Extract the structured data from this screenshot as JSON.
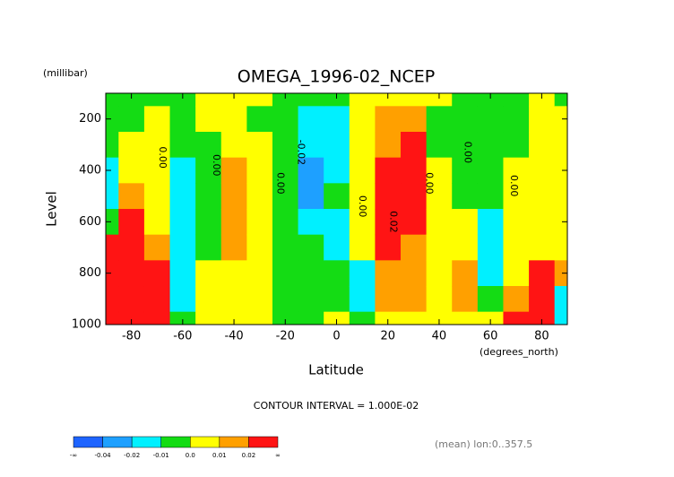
{
  "chart_data": {
    "type": "contour",
    "title": "OMEGA_1996-02_NCEP",
    "y_unit": "(millibar)",
    "y_label": "Level",
    "x_label": "Latitude",
    "x_unit": "(degrees_north)",
    "subtitle": "CONTOUR INTERVAL = 1.000E-02",
    "footnote": "(mean) lon:0..357.5",
    "x": [
      -90,
      -80,
      -70,
      -60,
      -50,
      -40,
      -30,
      -20,
      -10,
      0,
      10,
      20,
      30,
      40,
      50,
      60,
      70,
      80,
      90
    ],
    "y": [
      100,
      200,
      300,
      400,
      500,
      600,
      700,
      800,
      900,
      1000
    ],
    "z": [
      [
        -0.005,
        -0.005,
        -0.005,
        -0.015,
        -0.015,
        -0.005,
        0.03,
        0.04,
        0.05,
        0.05
      ],
      [
        -0.005,
        -0.005,
        0.005,
        0.005,
        0.015,
        0.03,
        0.04,
        0.05,
        0.05,
        0.05
      ],
      [
        -0.005,
        0.005,
        0.005,
        0.005,
        0.005,
        0.005,
        0.015,
        0.03,
        0.03,
        0.03
      ],
      [
        -0.005,
        -0.005,
        -0.005,
        -0.015,
        -0.015,
        -0.015,
        -0.015,
        -0.015,
        -0.015,
        -0.005
      ],
      [
        0.005,
        0.005,
        -0.005,
        -0.005,
        -0.005,
        -0.005,
        -0.005,
        0.005,
        0.005,
        0.005
      ],
      [
        0.005,
        0.005,
        0.005,
        0.015,
        0.015,
        0.015,
        0.015,
        0.005,
        0.005,
        0.005
      ],
      [
        0.005,
        -0.005,
        0.005,
        0.005,
        0.005,
        0.005,
        0.005,
        0.005,
        0.005,
        0.005
      ],
      [
        -0.005,
        -0.005,
        -0.005,
        -0.005,
        -0.005,
        -0.005,
        -0.005,
        -0.005,
        -0.005,
        -0.005
      ],
      [
        -0.005,
        -0.015,
        -0.015,
        -0.025,
        -0.025,
        -0.015,
        -0.005,
        -0.005,
        -0.005,
        -0.005
      ],
      [
        -0.005,
        -0.015,
        -0.015,
        -0.015,
        -0.005,
        -0.015,
        -0.015,
        -0.005,
        -0.005,
        0.005
      ],
      [
        0.005,
        0.005,
        0.005,
        0.005,
        0.005,
        0.005,
        0.005,
        -0.015,
        -0.015,
        -0.005
      ],
      [
        0.005,
        0.015,
        0.015,
        0.025,
        0.025,
        0.025,
        0.025,
        0.015,
        0.015,
        0.005
      ],
      [
        0.005,
        0.015,
        0.025,
        0.025,
        0.025,
        0.025,
        0.015,
        0.015,
        0.015,
        0.005
      ],
      [
        0.005,
        -0.005,
        -0.005,
        0.005,
        0.005,
        0.005,
        0.005,
        0.005,
        0.005,
        0.005
      ],
      [
        -0.005,
        -0.005,
        -0.005,
        -0.005,
        -0.005,
        0.005,
        0.005,
        0.015,
        0.015,
        0.005
      ],
      [
        -0.005,
        -0.005,
        -0.005,
        -0.005,
        -0.005,
        -0.015,
        -0.015,
        -0.015,
        -0.005,
        0.005
      ],
      [
        -0.005,
        -0.005,
        -0.005,
        0.005,
        0.005,
        0.005,
        0.005,
        0.005,
        0.015,
        0.025
      ],
      [
        0.005,
        0.005,
        0.005,
        0.005,
        0.005,
        0.005,
        0.005,
        0.025,
        0.025,
        0.025
      ],
      [
        -0.005,
        0.005,
        0.005,
        0.005,
        0.005,
        0.005,
        0.005,
        0.015,
        -0.015,
        -0.015
      ]
    ],
    "xlim": [
      -90,
      90
    ],
    "xticks": [
      -80,
      -60,
      -40,
      -20,
      0,
      20,
      40,
      60,
      80
    ],
    "ylim": [
      1000,
      100
    ],
    "yticks": [
      200,
      400,
      600,
      800,
      1000
    ],
    "levels": [
      -0.04,
      -0.02,
      -0.01,
      {
        "value": 0,
        "label": "0.0"
      },
      0.01,
      0.02
    ],
    "level_colors": [
      "#1e64ff",
      "#1ea0ff",
      "#00f0ff",
      "#14dc14",
      "#ffff00",
      "#ffa000",
      "#ff1414"
    ],
    "colorbar_ends": [
      "-∞",
      "∞"
    ],
    "contour_labels": [
      {
        "text": "0.00",
        "x": -68,
        "y": 350
      },
      {
        "text": "0.00",
        "x": -47,
        "y": 380
      },
      {
        "text": "0.00",
        "x": -22,
        "y": 450
      },
      {
        "text": "-0.02",
        "x": -14,
        "y": 330
      },
      {
        "text": "0.00",
        "x": 10,
        "y": 540
      },
      {
        "text": "0.02",
        "x": 22,
        "y": 600
      },
      {
        "text": "0.00",
        "x": 36,
        "y": 450
      },
      {
        "text": "0.00",
        "x": 51,
        "y": 330
      },
      {
        "text": "0.00",
        "x": 69,
        "y": 460
      }
    ]
  }
}
